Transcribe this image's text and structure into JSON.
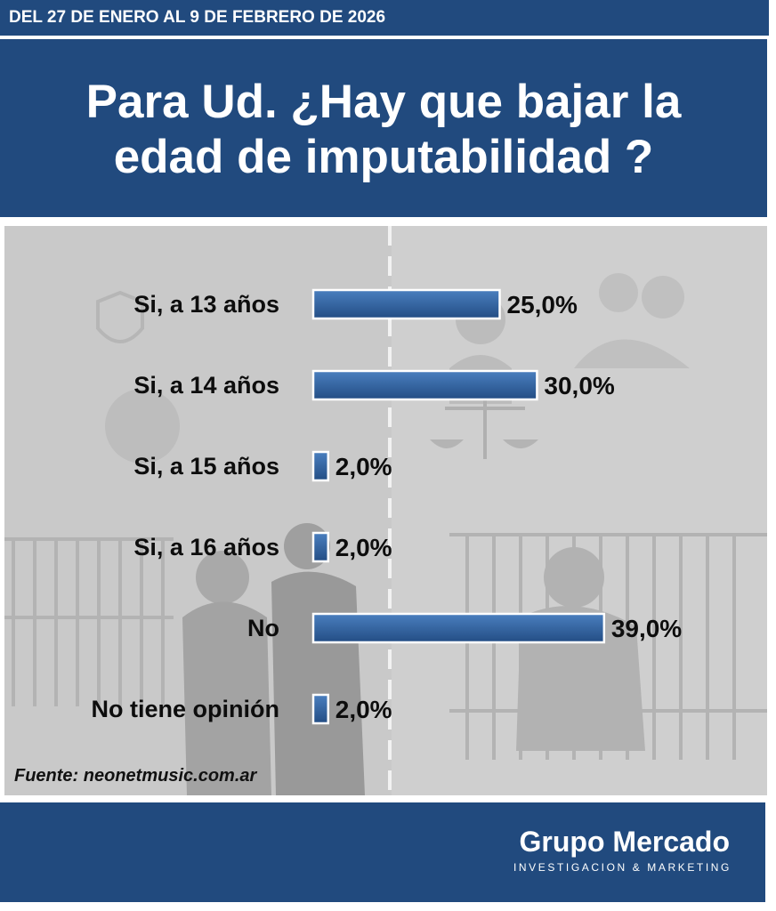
{
  "header": {
    "date_range": "DEL 27 DE ENERO AL 9 DE FEBRERO DE 2026"
  },
  "title": {
    "line1": "Para Ud. ¿Hay que bajar la",
    "line2": "edad de imputabilidad ?"
  },
  "chart_data": {
    "type": "bar",
    "orientation": "horizontal",
    "categories": [
      "Si, a 13 años",
      "Si, a 14 años",
      "Si, a 15 años",
      "Si, a 16 años",
      "No",
      "No tiene opinión"
    ],
    "values": [
      25.0,
      30.0,
      2.0,
      2.0,
      39.0,
      2.0
    ],
    "data_labels": [
      "25,0%",
      "30,0%",
      "2,0%",
      "2,0%",
      "39,0%",
      "2,0%"
    ],
    "bar_color": "#2f5f9c"
  },
  "source": "Fuente: neonetmusic.com.ar",
  "footer": {
    "brand": "Grupo Mercado",
    "tagline": "INVESTIGACION & MARKETING"
  },
  "colors": {
    "primary": "#214a7e",
    "chart_background": "#c9c9c9"
  }
}
